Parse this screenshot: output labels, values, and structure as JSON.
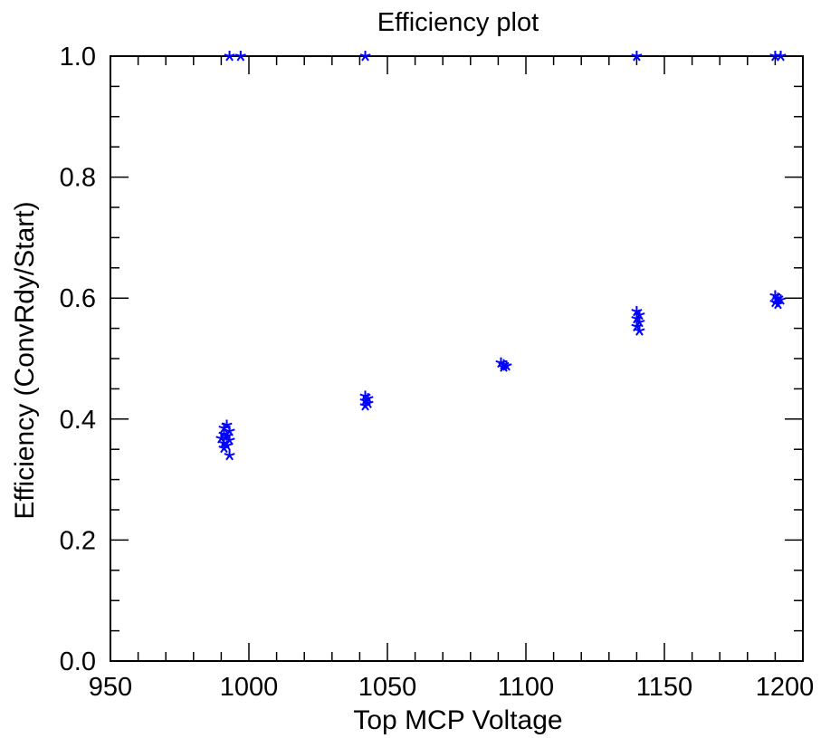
{
  "chart_data": {
    "type": "scatter",
    "title": "Efficiency plot",
    "xlabel": "Top MCP Voltage",
    "ylabel": "Efficiency (ConvRdy/Start)",
    "xlim": [
      950,
      1200
    ],
    "ylim": [
      0.0,
      1.0
    ],
    "x_major_ticks": [
      950,
      1000,
      1050,
      1100,
      1150,
      1200
    ],
    "x_tick_labels": [
      "950",
      "1000",
      "1050",
      "1100",
      "1150",
      "1200"
    ],
    "x_minor_step": 10,
    "y_major_ticks": [
      0.0,
      0.2,
      0.4,
      0.6,
      0.8,
      1.0
    ],
    "y_tick_labels": [
      "0.0",
      "0.2",
      "0.4",
      "0.6",
      "0.8",
      "1.0"
    ],
    "y_minor_step": 0.05,
    "grid": false,
    "marker": "asterisk",
    "color": "#0000ff",
    "series": [
      {
        "points": [
          [
            992,
            0.39
          ],
          [
            991,
            0.385
          ],
          [
            993,
            0.38
          ],
          [
            991,
            0.375
          ],
          [
            992,
            0.372
          ],
          [
            990,
            0.368
          ],
          [
            993,
            0.365
          ],
          [
            991,
            0.36
          ],
          [
            992,
            0.356
          ],
          [
            991,
            0.352
          ],
          [
            993,
            0.34
          ],
          [
            1042,
            0.438
          ],
          [
            1043,
            0.434
          ],
          [
            1042,
            0.43
          ],
          [
            1043,
            0.426
          ],
          [
            1042,
            0.422
          ],
          [
            1091,
            0.493
          ],
          [
            1092,
            0.49
          ],
          [
            1093,
            0.488
          ],
          [
            1092,
            0.486
          ],
          [
            1140,
            0.578
          ],
          [
            1141,
            0.572
          ],
          [
            1140,
            0.566
          ],
          [
            1141,
            0.56
          ],
          [
            1140,
            0.553
          ],
          [
            1141,
            0.546
          ],
          [
            1190,
            0.604
          ],
          [
            1191,
            0.6
          ],
          [
            1192,
            0.597
          ],
          [
            1190,
            0.593
          ],
          [
            1191,
            0.59
          ],
          [
            993,
            1.0
          ],
          [
            997,
            1.0
          ],
          [
            1042,
            1.0
          ],
          [
            1140,
            1.0
          ],
          [
            1190,
            1.0
          ],
          [
            1192,
            1.0
          ]
        ]
      }
    ]
  }
}
